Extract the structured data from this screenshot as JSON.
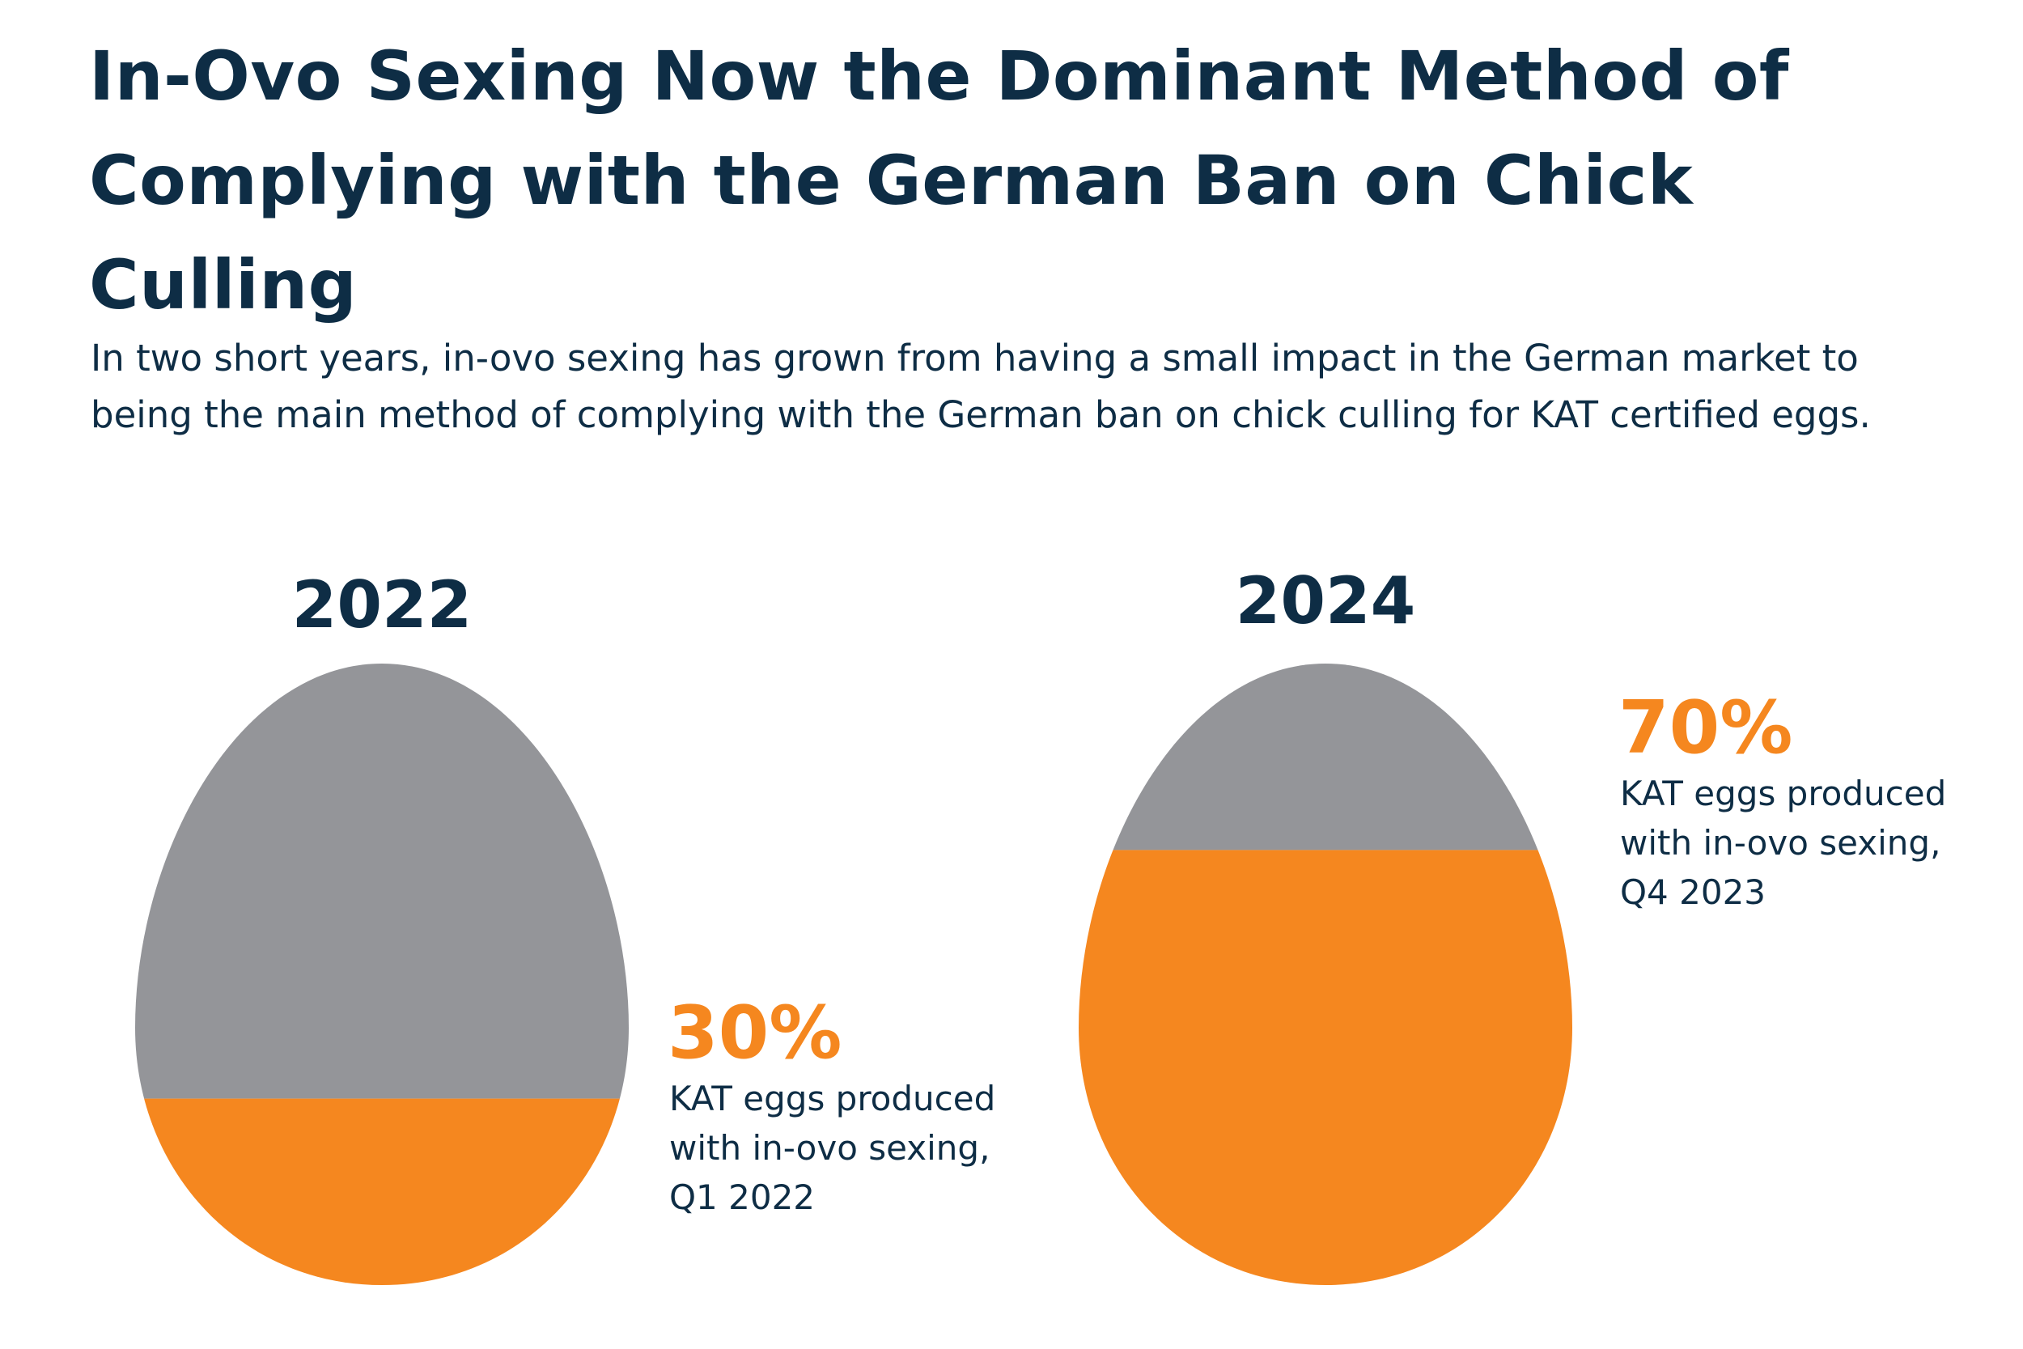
{
  "title": "In-Ovo Sexing Now the Dominant Method of Complying with the German Ban on Chick Culling",
  "subtitle": "In two short years, in-ovo sexing has grown from having a small impact in the German market to being the main method of complying with the German ban on chick culling for KAT certified eggs.",
  "colors": {
    "filled": "#f5871f",
    "empty": "#949599",
    "text": "#0e2d45"
  },
  "chart_data": {
    "type": "area",
    "series": [
      {
        "year": "2022",
        "value": 30,
        "value_label": "30%",
        "description": [
          "KAT eggs produced",
          "with in-ovo sexing,",
          "Q1 2022"
        ]
      },
      {
        "year": "2024",
        "value": 70,
        "value_label": "70%",
        "description": [
          "KAT eggs produced",
          "with in-ovo sexing,",
          "Q4 2023"
        ]
      }
    ]
  }
}
